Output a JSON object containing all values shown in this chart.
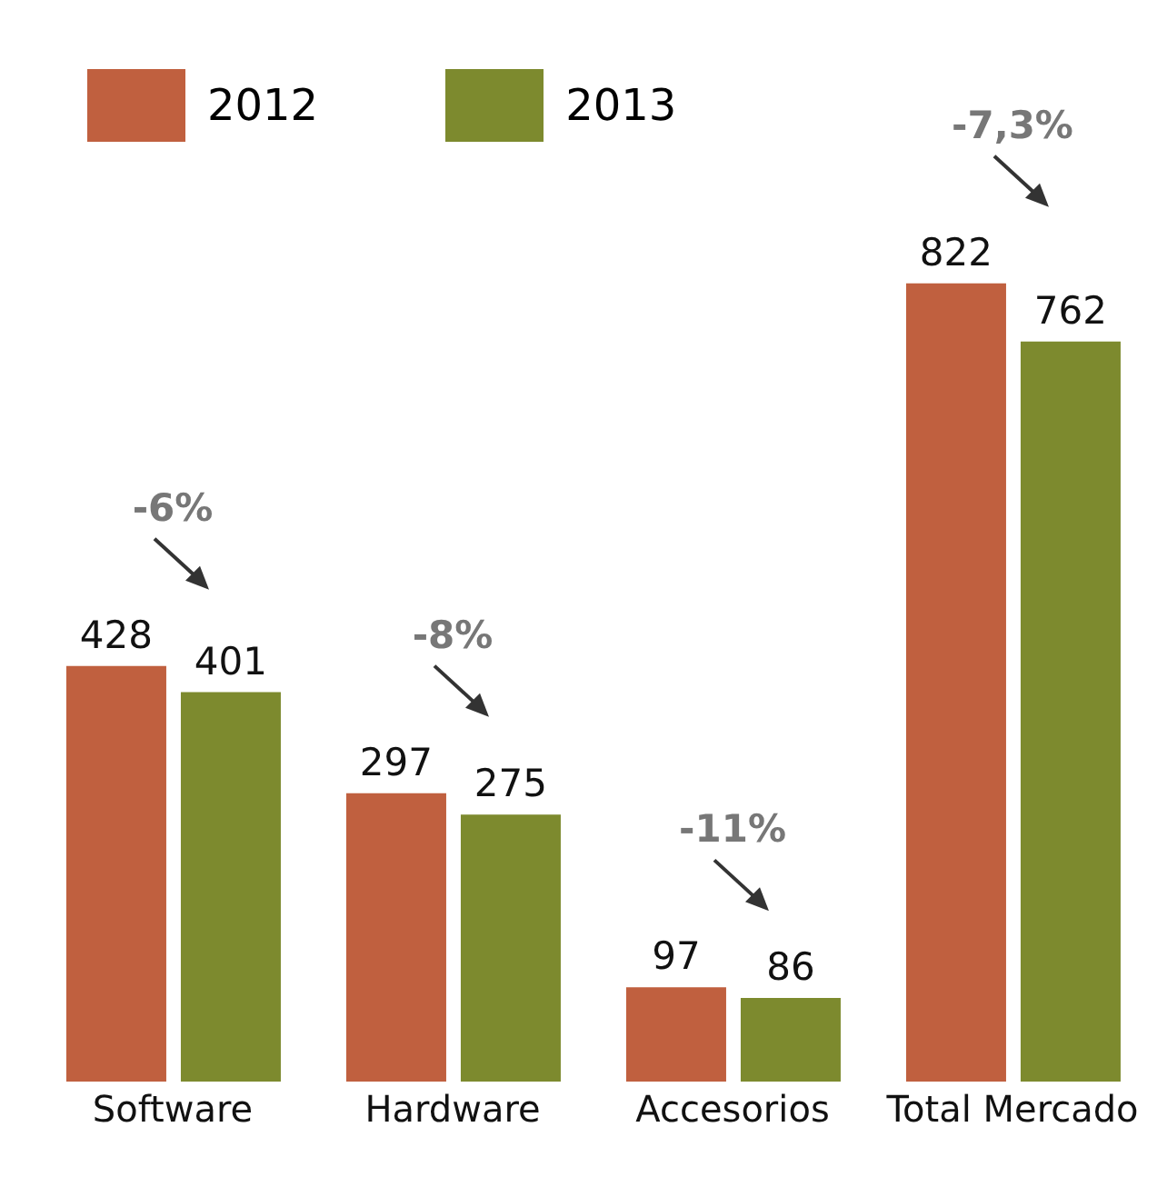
{
  "chart_data": {
    "type": "bar",
    "categories": [
      "Software",
      "Hardware",
      "Accesorios",
      "Total Mercado"
    ],
    "series": [
      {
        "name": "2012",
        "color": "#c0603f",
        "values": [
          428,
          297,
          97,
          822
        ]
      },
      {
        "name": "2013",
        "color": "#7d8a2e",
        "values": [
          401,
          275,
          86,
          762
        ]
      }
    ],
    "data_labels": true,
    "legend": "top left",
    "grid": false,
    "annotations": [
      "-6%",
      "-8%",
      "-11%",
      "-7,3%"
    ]
  }
}
